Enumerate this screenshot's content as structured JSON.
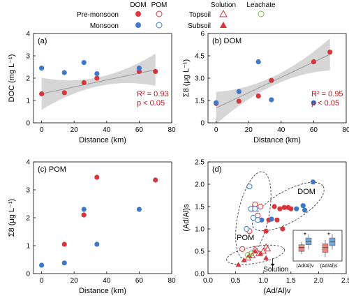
{
  "legend": {
    "col_dom": "DOM",
    "col_pom": "POM",
    "row_pre": "Pre-monsoon",
    "row_mon": "Monsoon",
    "solution": "Solution",
    "leachate": "Leachate",
    "topsoil": "Topsoil",
    "subsoil": "Subsoil"
  },
  "colors": {
    "pre_monsoon": "#d9363b",
    "monsoon": "#3f78c8",
    "leachate": "#7fbf4a",
    "regression_band": "#cfcfcf",
    "stats_text": "#c0141c",
    "inset_box_pre": "#e8847d",
    "inset_box_mon": "#6fa7dd"
  },
  "chart_data": [
    {
      "panel": "(a)",
      "type": "scatter",
      "xlabel": "Distance (km)",
      "ylabel": "DOC (mg L⁻¹)",
      "xlim": [
        -5,
        80
      ],
      "ylim": [
        0,
        4
      ],
      "xticks": [
        "0",
        "20",
        "40",
        "60",
        "80"
      ],
      "yticks": [
        "0",
        "1",
        "2",
        "3",
        "4"
      ],
      "series": [
        {
          "season": "pre-monsoon",
          "x": [
            0,
            14,
            26,
            34,
            60,
            70
          ],
          "y": [
            1.3,
            1.35,
            1.8,
            2.0,
            2.3,
            2.3
          ]
        },
        {
          "season": "monsoon",
          "x": [
            0,
            14,
            26,
            34,
            60
          ],
          "y": [
            2.45,
            2.25,
            2.7,
            2.2,
            2.45
          ]
        }
      ],
      "fit_line": {
        "x": [
          0,
          70
        ],
        "y": [
          1.3,
          2.38
        ]
      },
      "stats": [
        "R² = 0.93",
        "p < 0.05"
      ]
    },
    {
      "panel": "(b) DOM",
      "type": "scatter",
      "xlabel": "Distance (km)",
      "ylabel": "Σ8 (μg L⁻¹)",
      "xlim": [
        -5,
        80
      ],
      "ylim": [
        0,
        6
      ],
      "xticks": [
        "0",
        "20",
        "40",
        "60",
        "80"
      ],
      "yticks": [
        "0",
        "1.5",
        "3.0",
        "4.5",
        "6"
      ],
      "series": [
        {
          "season": "pre-monsoon",
          "x": [
            0,
            14,
            26,
            34,
            60,
            70
          ],
          "y": [
            1.3,
            1.45,
            1.8,
            2.85,
            4.1,
            4.75
          ]
        },
        {
          "season": "monsoon",
          "x": [
            0,
            14,
            26,
            34,
            60
          ],
          "y": [
            1.35,
            2.1,
            4.1,
            1.55,
            1.35
          ]
        }
      ],
      "fit_line": {
        "x": [
          0,
          70
        ],
        "y": [
          1.0,
          4.6
        ]
      },
      "stats": [
        "R² = 0.95",
        "p < 0.05"
      ]
    },
    {
      "panel": "(c) POM",
      "type": "scatter",
      "xlabel": "Distance (km)",
      "ylabel": "Σ8 (μg L⁻¹)",
      "xlim": [
        -5,
        80
      ],
      "ylim": [
        0,
        4
      ],
      "xticks": [
        "0",
        "20",
        "40",
        "60",
        "80"
      ],
      "yticks": [
        "0",
        "1",
        "2",
        "3",
        "4"
      ],
      "series": [
        {
          "season": "pre-monsoon",
          "x": [
            14,
            26,
            34,
            70
          ],
          "y": [
            1.05,
            2.1,
            3.45,
            3.35
          ]
        },
        {
          "season": "monsoon",
          "x": [
            0,
            14,
            26,
            34,
            60
          ],
          "y": [
            0.3,
            0.38,
            2.3,
            1.05,
            2.3
          ]
        }
      ],
      "stats": []
    },
    {
      "panel": "(d)",
      "type": "scatter",
      "xlabel": "(Ad/Al)v",
      "ylabel": "(Ad/Al)s",
      "xlim": [
        0,
        2.5
      ],
      "ylim": [
        0,
        2.5
      ],
      "xticks": [
        "0.0",
        "0.5",
        "1.0",
        "1.5",
        "2.0",
        "2.5"
      ],
      "yticks": [
        "0.0",
        "0.5",
        "1.0",
        "1.5",
        "2.0",
        "2.5"
      ],
      "group_labels": [
        "DOM",
        "POM",
        "Solution"
      ],
      "series": [
        {
          "group": "DOM pre-monsoon",
          "x": [
            1.05,
            1.1,
            1.25,
            1.3,
            1.38,
            1.45,
            1.5,
            1.35,
            1.2
          ],
          "y": [
            0.95,
            1.2,
            1.2,
            1.45,
            1.48,
            1.48,
            1.45,
            1.0,
            1.5
          ]
        },
        {
          "group": "DOM monsoon",
          "x": [
            0.97,
            1.15,
            1.6,
            1.72,
            1.75,
            1.9
          ],
          "y": [
            1.2,
            1.22,
            1.45,
            1.52,
            1.42,
            2.05
          ]
        },
        {
          "group": "POM pre-monsoon",
          "x": [
            0.62,
            0.75,
            0.8,
            0.85,
            0.9,
            0.95
          ],
          "y": [
            0.55,
            0.95,
            1.45,
            1.55,
            1.3,
            1.5
          ]
        },
        {
          "group": "POM monsoon",
          "x": [
            0.7,
            0.75,
            0.78,
            0.82,
            0.85,
            0.9
          ],
          "y": [
            1.0,
            1.95,
            1.45,
            1.25,
            1.45,
            1.2
          ]
        },
        {
          "group": "Topsoil solution",
          "x": [
            0.72,
            0.8,
            0.85,
            0.92,
            1.0,
            1.05,
            1.08
          ],
          "y": [
            0.35,
            0.4,
            0.55,
            0.45,
            0.5,
            0.6,
            0.55
          ]
        },
        {
          "group": "Subsoil solution",
          "x": [
            0.55,
            0.65,
            0.75,
            0.85,
            0.95,
            1.05
          ],
          "y": [
            0.2,
            0.3,
            0.4,
            0.5,
            0.45,
            0.35
          ]
        },
        {
          "group": "Leachate",
          "x": [
            0.72,
            0.78
          ],
          "y": [
            0.42,
            0.45
          ]
        }
      ],
      "inset": {
        "labels": [
          "(Ad/Al)v",
          "(Ad/Al)s"
        ],
        "markers": [
          "*",
          "*"
        ],
        "boxes": [
          {
            "label": "(Ad/Al)v",
            "season": "pre-monsoon",
            "q1": 1.1,
            "median": 1.3,
            "q3": 1.45,
            "min": 0.95,
            "max": 1.6
          },
          {
            "label": "(Ad/Al)v",
            "season": "monsoon",
            "q1": 1.45,
            "median": 1.6,
            "q3": 1.8,
            "min": 1.2,
            "max": 2.0
          },
          {
            "label": "(Ad/Al)s",
            "season": "pre-monsoon",
            "q1": 1.05,
            "median": 1.3,
            "q3": 1.5,
            "min": 0.8,
            "max": 1.7
          },
          {
            "label": "(Ad/Al)s",
            "season": "monsoon",
            "q1": 1.4,
            "median": 1.6,
            "q3": 1.8,
            "min": 1.2,
            "max": 2.0
          }
        ]
      }
    }
  ]
}
